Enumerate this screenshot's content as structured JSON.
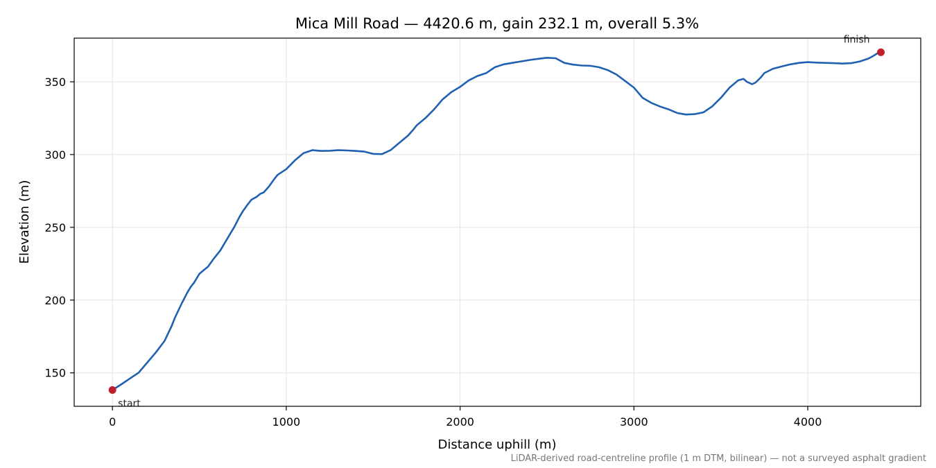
{
  "chart_data": {
    "type": "line",
    "title": "Mica Mill Road — 4420.6 m, gain 232.1 m, overall 5.3%",
    "xlabel": "Distance uphill (m)",
    "ylabel": "Elevation (m)",
    "xlim": [
      -220,
      4650
    ],
    "ylim": [
      127,
      380
    ],
    "xticks": [
      0,
      1000,
      2000,
      3000,
      4000
    ],
    "yticks": [
      150,
      200,
      250,
      300,
      350
    ],
    "grid": true,
    "line_color": "#2060b0",
    "marker_color": "#c0202c",
    "footnote": "LiDAR-derived road-centreline profile (1 m DTM, bilinear) — not a surveyed asphalt gradient",
    "markers": [
      {
        "label": "start",
        "x": 0,
        "y": 138.2
      },
      {
        "label": "finish",
        "x": 4420.6,
        "y": 370.3
      }
    ],
    "series": [
      {
        "x": [
          0,
          50,
          100,
          150,
          200,
          250,
          300,
          340,
          360,
          380,
          400,
          430,
          450,
          470,
          500,
          520,
          550,
          580,
          600,
          620,
          650,
          680,
          700,
          730,
          750,
          780,
          800,
          830,
          850,
          870,
          900,
          930,
          950,
          1000,
          1050,
          1100,
          1150,
          1200,
          1250,
          1300,
          1350,
          1400,
          1450,
          1500,
          1550,
          1600,
          1650,
          1700,
          1730,
          1750,
          1800,
          1850,
          1900,
          1950,
          2000,
          2050,
          2100,
          2150,
          2200,
          2250,
          2300,
          2350,
          2400,
          2450,
          2500,
          2550,
          2600,
          2650,
          2700,
          2750,
          2800,
          2850,
          2900,
          2950,
          3000,
          3050,
          3100,
          3150,
          3200,
          3250,
          3300,
          3350,
          3400,
          3450,
          3500,
          3550,
          3600,
          3630,
          3650,
          3680,
          3700,
          3730,
          3750,
          3800,
          3850,
          3900,
          3950,
          4000,
          4050,
          4100,
          4150,
          4200,
          4250,
          4300,
          4350,
          4380,
          4400,
          4420.6
        ],
        "y": [
          138.2,
          142,
          146,
          150,
          157,
          164,
          172,
          182,
          188,
          193,
          198,
          205,
          209,
          212,
          218,
          220,
          223,
          228,
          231,
          234,
          240,
          246,
          250,
          257,
          261,
          266,
          269,
          271,
          273,
          274,
          278,
          283,
          286,
          290,
          296,
          301,
          303,
          302.5,
          302.6,
          303,
          302.8,
          302.5,
          302,
          300.5,
          300.3,
          303,
          308,
          313,
          317,
          320,
          325,
          331,
          338,
          343,
          346.5,
          351,
          354,
          356,
          360,
          362,
          363,
          364,
          365,
          365.8,
          366.5,
          366.2,
          363,
          361.8,
          361.2,
          361,
          360,
          358,
          355,
          350.5,
          346,
          339,
          335.5,
          333,
          331,
          328.5,
          327.5,
          327.8,
          329,
          333,
          339,
          346,
          351,
          352,
          350,
          348.3,
          349.5,
          353,
          356,
          359,
          360.5,
          362,
          363,
          363.5,
          363.2,
          363,
          362.8,
          362.5,
          362.8,
          364,
          366,
          368,
          369.5,
          370.3
        ]
      }
    ]
  }
}
